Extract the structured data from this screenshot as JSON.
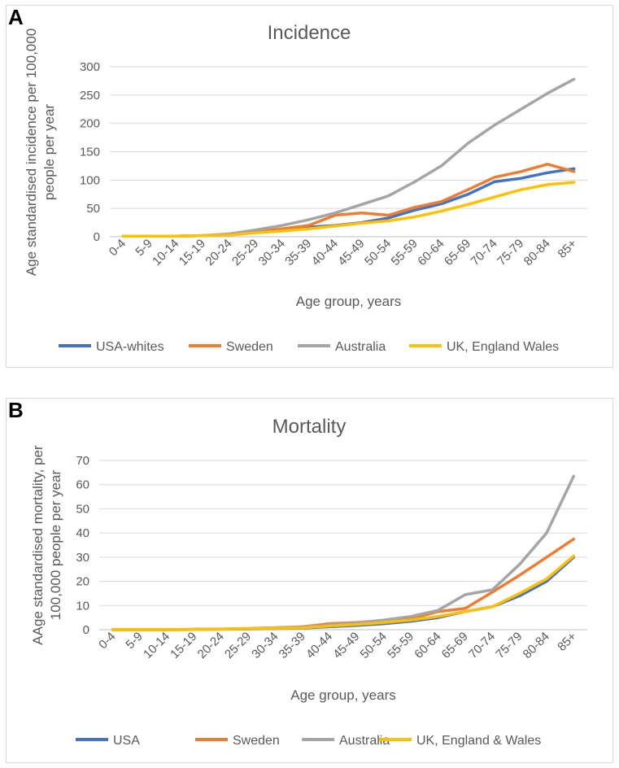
{
  "panels": [
    {
      "letter": "A"
    },
    {
      "letter": "B"
    }
  ],
  "chart_data": [
    {
      "type": "line",
      "title": "Incidence",
      "xlabel": "Age group, years",
      "ylabel": "Age standardised incidence per 100,000 people per year",
      "ylabel_lines": [
        "Age standardised incidence per 100,000",
        "people per year"
      ],
      "categories": [
        "0-4",
        "5-9",
        "10-14",
        "15-19",
        "20-24",
        "25-29",
        "30-34",
        "35-39",
        "40-44",
        "45-49",
        "50-54",
        "55-59",
        "60-64",
        "65-69",
        "70-74",
        "75-79",
        "80-84",
        "85+"
      ],
      "ylim": [
        0,
        300
      ],
      "yticks": [
        0,
        50,
        100,
        150,
        200,
        250,
        300
      ],
      "grid": true,
      "legend_position": "bottom",
      "series": [
        {
          "name": "USA-whites",
          "color": "#4472C4",
          "values": [
            1,
            1,
            1,
            2,
            4,
            8,
            12,
            17,
            20,
            25,
            33,
            47,
            58,
            75,
            97,
            103,
            113,
            120
          ]
        },
        {
          "name": "Sweden",
          "color": "#ED7D31",
          "values": [
            1,
            1,
            1,
            2,
            4,
            9,
            14,
            20,
            38,
            42,
            38,
            52,
            62,
            83,
            105,
            115,
            128,
            115
          ]
        },
        {
          "name": "Australia",
          "color": "#A5A5A5",
          "values": [
            1,
            1,
            1,
            2,
            5,
            12,
            20,
            30,
            42,
            57,
            72,
            97,
            125,
            165,
            197,
            225,
            253,
            278
          ]
        },
        {
          "name": "UK, England Wales",
          "color": "#FFC000",
          "values": [
            1,
            1,
            1,
            2,
            3,
            7,
            10,
            14,
            19,
            24,
            28,
            35,
            45,
            57,
            70,
            83,
            92,
            96
          ]
        }
      ]
    },
    {
      "type": "line",
      "title": "Mortality",
      "xlabel": "Age group, years",
      "ylabel": "AAge standardised mortality, per 100,000 people per year",
      "ylabel_lines": [
        "AAge standardised mortality, per",
        "100,000 people per year"
      ],
      "categories": [
        "0-4",
        "5-9",
        "10-14",
        "15-19",
        "20-24",
        "25-29",
        "30-34",
        "35-39",
        "40-44",
        "45-49",
        "50-54",
        "55-59",
        "60-64",
        "65-69",
        "70-74",
        "75-79",
        "80-84",
        "85+"
      ],
      "ylim": [
        0,
        70
      ],
      "yticks": [
        0,
        10,
        20,
        30,
        40,
        50,
        60,
        70
      ],
      "grid": true,
      "legend_position": "bottom",
      "series": [
        {
          "name": "USA",
          "color": "#4472C4",
          "values": [
            0,
            0,
            0,
            0.1,
            0.2,
            0.3,
            0.5,
            0.7,
            1.2,
            1.8,
            2.5,
            3.5,
            5.0,
            7.5,
            9.5,
            14,
            20,
            30
          ]
        },
        {
          "name": "Sweden",
          "color": "#ED7D31",
          "values": [
            0,
            0,
            0,
            0.1,
            0.2,
            0.4,
            0.8,
            1.2,
            2.5,
            3.0,
            3.8,
            4.5,
            7.5,
            8.8,
            15.5,
            22.5,
            30,
            37.5
          ]
        },
        {
          "name": "Australia",
          "color": "#A5A5A5",
          "values": [
            0,
            0,
            0,
            0.2,
            0.3,
            0.5,
            0.8,
            1.0,
            2.0,
            2.8,
            4.0,
            5.5,
            8.0,
            14.5,
            16.5,
            27,
            40,
            63.5
          ]
        },
        {
          "name": "UK, England & Wales",
          "color": "#FFC000",
          "values": [
            0,
            0,
            0,
            0.1,
            0.2,
            0.4,
            0.6,
            0.8,
            1.5,
            2.2,
            3.0,
            4.0,
            5.5,
            7.5,
            9.5,
            15,
            21,
            30.5
          ]
        }
      ]
    }
  ]
}
